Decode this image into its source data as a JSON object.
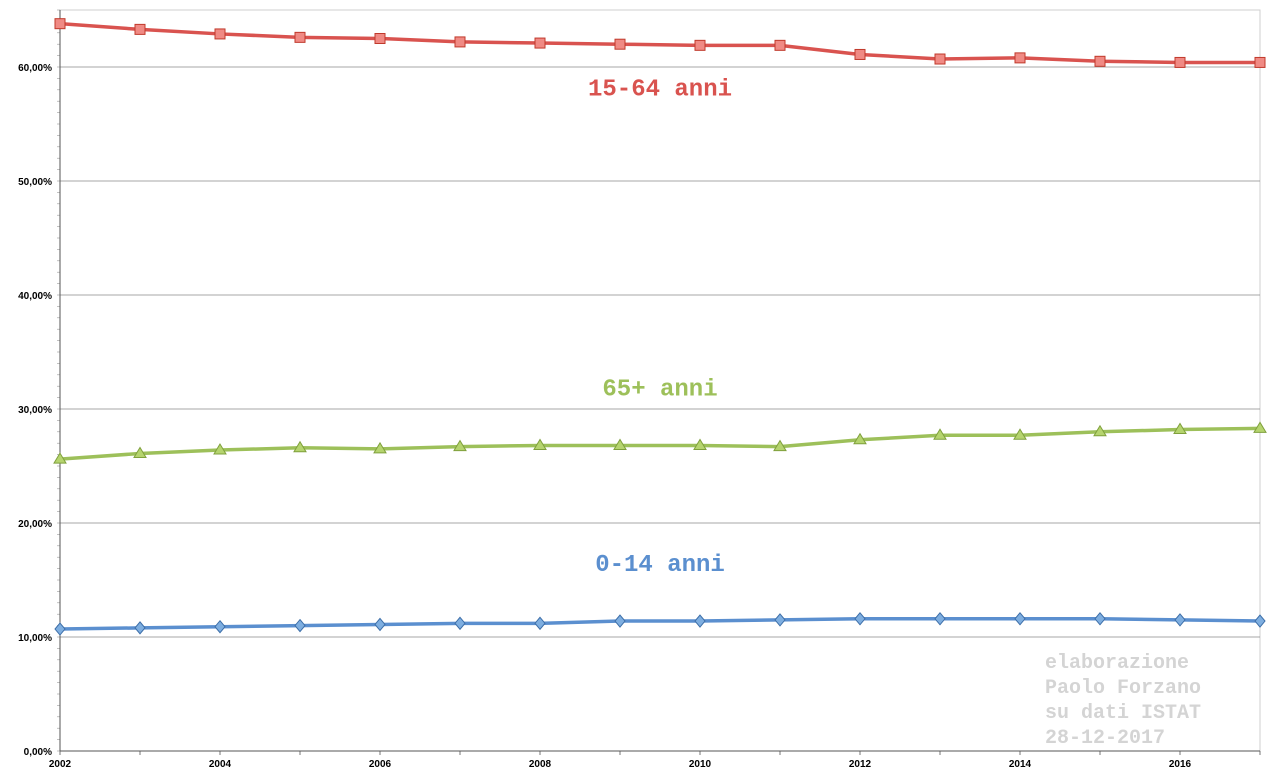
{
  "chart_data": {
    "type": "line",
    "title": "",
    "xlabel": "",
    "ylabel": "",
    "x": [
      2002,
      2003,
      2004,
      2005,
      2006,
      2007,
      2008,
      2009,
      2010,
      2011,
      2012,
      2013,
      2014,
      2015,
      2016,
      2017
    ],
    "x_tick_labels": [
      "2002",
      "2004",
      "2006",
      "2008",
      "2010",
      "2012",
      "2014",
      "2016"
    ],
    "x_tick_values": [
      2002,
      2004,
      2006,
      2008,
      2010,
      2012,
      2014,
      2016
    ],
    "ylim": [
      0,
      65
    ],
    "y_tick_values": [
      0,
      10,
      20,
      30,
      40,
      50,
      60
    ],
    "y_tick_labels": [
      "0,00%",
      "10,00%",
      "20,00%",
      "30,00%",
      "40,00%",
      "50,00%",
      "60,00%"
    ],
    "grid": "horizontal",
    "series": [
      {
        "name": "15-64 anni",
        "color": "#d9534f",
        "marker": "square",
        "values": [
          63.8,
          63.3,
          62.9,
          62.6,
          62.5,
          62.2,
          62.1,
          62.0,
          61.9,
          61.9,
          61.1,
          60.7,
          60.8,
          60.5,
          60.4,
          60.4
        ]
      },
      {
        "name": "65+ anni",
        "color": "#9dc05a",
        "marker": "triangle",
        "values": [
          25.6,
          26.1,
          26.4,
          26.6,
          26.5,
          26.7,
          26.8,
          26.8,
          26.8,
          26.7,
          27.3,
          27.7,
          27.7,
          28.0,
          28.2,
          28.3
        ]
      },
      {
        "name": "0-14 anni",
        "color": "#5b8fcf",
        "marker": "diamond",
        "values": [
          10.7,
          10.8,
          10.9,
          11.0,
          11.1,
          11.2,
          11.2,
          11.4,
          11.4,
          11.5,
          11.6,
          11.6,
          11.6,
          11.6,
          11.5,
          11.4
        ]
      }
    ],
    "annotation": [
      "elaborazione",
      "Paolo Forzano",
      "su dati ISTAT",
      "28-12-2017"
    ]
  }
}
